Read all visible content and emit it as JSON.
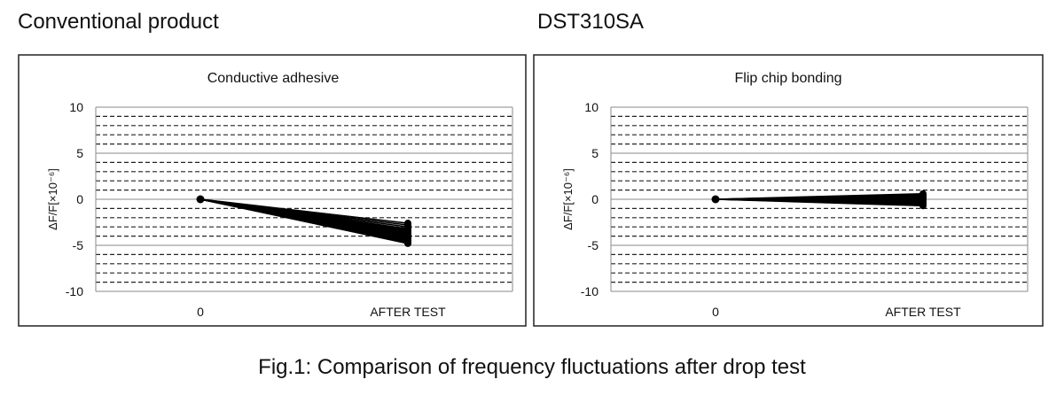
{
  "labels": {
    "left_heading": "Conventional product",
    "right_heading": "DST310SA",
    "caption": "Fig.1: Comparison of frequency fluctuations after drop test"
  },
  "chart_data": [
    {
      "type": "line",
      "title": "Conductive adhesive",
      "xlabel": "",
      "ylabel": "ΔF/F[×10⁻⁶]",
      "categories": [
        "0",
        "AFTER TEST"
      ],
      "ylim": [
        -10,
        10
      ],
      "yticks": [
        10,
        5,
        0,
        -5,
        -10
      ],
      "grid": "solid major every 5, dashed minor every 1",
      "line_color": "#000000",
      "series": [
        {
          "values": [
            0,
            -2.6
          ]
        },
        {
          "values": [
            0,
            -2.8
          ]
        },
        {
          "values": [
            0,
            -3.0
          ]
        },
        {
          "values": [
            0,
            -3.2
          ]
        },
        {
          "values": [
            0,
            -3.3
          ]
        },
        {
          "values": [
            0,
            -3.4
          ]
        },
        {
          "values": [
            0,
            -3.5
          ]
        },
        {
          "values": [
            0,
            -3.6
          ]
        },
        {
          "values": [
            0,
            -3.7
          ]
        },
        {
          "values": [
            0,
            -3.8
          ]
        },
        {
          "values": [
            0,
            -3.9
          ]
        },
        {
          "values": [
            0,
            -4.0
          ]
        },
        {
          "values": [
            0,
            -4.1
          ]
        },
        {
          "values": [
            0,
            -4.2
          ]
        },
        {
          "values": [
            0,
            -4.3
          ]
        },
        {
          "values": [
            0,
            -4.4
          ]
        },
        {
          "values": [
            0,
            -4.5
          ]
        },
        {
          "values": [
            0,
            -4.6
          ]
        },
        {
          "values": [
            0,
            -4.7
          ]
        },
        {
          "values": [
            0,
            -4.8
          ]
        }
      ]
    },
    {
      "type": "line",
      "title": "Flip chip bonding",
      "xlabel": "",
      "ylabel": "ΔF/F[×10⁻⁶]",
      "categories": [
        "0",
        "AFTER TEST"
      ],
      "ylim": [
        -10,
        10
      ],
      "yticks": [
        10,
        5,
        0,
        -5,
        -10
      ],
      "grid": "solid major every 5, dashed minor every 1",
      "line_color": "#000000",
      "series": [
        {
          "values": [
            0,
            0.6
          ]
        },
        {
          "values": [
            0,
            0.5
          ]
        },
        {
          "values": [
            0,
            0.4
          ]
        },
        {
          "values": [
            0,
            0.3
          ]
        },
        {
          "values": [
            0,
            0.2
          ]
        },
        {
          "values": [
            0,
            0.1
          ]
        },
        {
          "values": [
            0,
            0.0
          ]
        },
        {
          "values": [
            0,
            -0.1
          ]
        },
        {
          "values": [
            0,
            -0.2
          ]
        },
        {
          "values": [
            0,
            -0.3
          ]
        },
        {
          "values": [
            0,
            -0.4
          ]
        },
        {
          "values": [
            0,
            -0.5
          ]
        },
        {
          "values": [
            0,
            -0.6
          ]
        },
        {
          "values": [
            0,
            -0.7
          ]
        }
      ]
    }
  ]
}
